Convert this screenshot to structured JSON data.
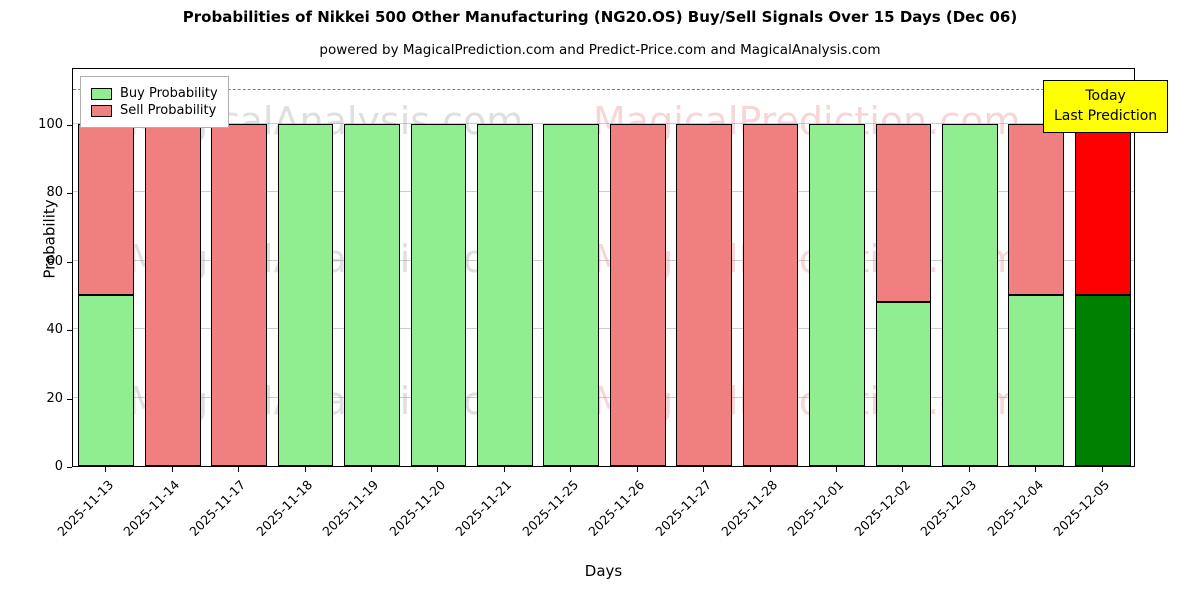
{
  "title": "Probabilities of Nikkei 500 Other Manufacturing (NG20.OS) Buy/Sell Signals Over 15 Days (Dec 06)",
  "subtitle": "powered by MagicalPrediction.com and Predict-Price.com and MagicalAnalysis.com",
  "legend": {
    "buy_label": "Buy Probability",
    "sell_label": "Sell Probability"
  },
  "today_box": {
    "line1": "Today",
    "line2": "Last Prediction"
  },
  "axes": {
    "xlabel": "Days",
    "ylabel": "Probability"
  },
  "watermarks": {
    "analysis": "MagicalAnalysis.com",
    "prediction": "MagicalPrediction.com"
  },
  "colors": {
    "buy": "#90EE90",
    "sell": "#F08080",
    "today_buy": "#008000",
    "today_sell": "#FF0000",
    "today_box_bg": "#FFFF00",
    "grid": "#cccccc",
    "dashed_line": "#7f7f7f"
  },
  "chart_data": {
    "type": "bar",
    "stacked": true,
    "title": "Probabilities of Nikkei 500 Other Manufacturing (NG20.OS) Buy/Sell Signals Over 15 Days (Dec 06)",
    "xlabel": "Days",
    "ylabel": "Probability",
    "ylim": [
      0,
      116.7
    ],
    "yticks": [
      0,
      20,
      40,
      60,
      80,
      100
    ],
    "dashed_line_y": 110,
    "grid": true,
    "legend_position": "upper-left",
    "categories": [
      "2025-11-13",
      "2025-11-14",
      "2025-11-17",
      "2025-11-18",
      "2025-11-19",
      "2025-11-20",
      "2025-11-21",
      "2025-11-25",
      "2025-11-26",
      "2025-11-27",
      "2025-11-28",
      "2025-12-01",
      "2025-12-02",
      "2025-12-03",
      "2025-12-04",
      "2025-12-05"
    ],
    "series": [
      {
        "name": "Buy Probability",
        "values": [
          50,
          0,
          0,
          100,
          100,
          100,
          100,
          100,
          0,
          0,
          0,
          100,
          48,
          100,
          50,
          50
        ]
      },
      {
        "name": "Sell Probability",
        "values": [
          50,
          100,
          100,
          0,
          0,
          0,
          0,
          0,
          100,
          100,
          100,
          0,
          52,
          0,
          50,
          50
        ]
      }
    ],
    "today_index": 15
  }
}
